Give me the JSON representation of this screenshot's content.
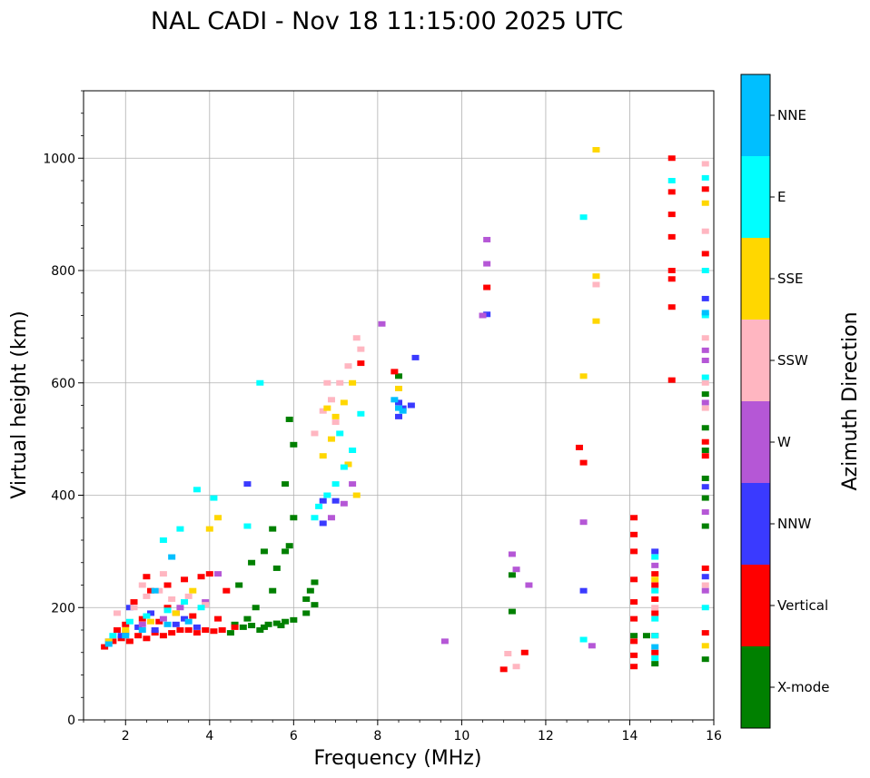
{
  "chart_data": {
    "type": "scatter",
    "title": "NAL CADI - Nov 18 11:15:00 2025 UTC",
    "xlabel": "Frequency (MHz)",
    "ylabel": "Virtual height (km)",
    "xlim": [
      1,
      16
    ],
    "ylim": [
      0,
      1120
    ],
    "xticks": [
      "2",
      "4",
      "6",
      "8",
      "10",
      "12",
      "14",
      "16"
    ],
    "yticks": [
      "0",
      "200",
      "400",
      "600",
      "800",
      "1000"
    ],
    "grid": true,
    "colorbar": {
      "label": "Azimuth Direction",
      "categories": [
        {
          "name": "X-mode",
          "color": "#008000"
        },
        {
          "name": "Vertical",
          "color": "#ff0000"
        },
        {
          "name": "NNW",
          "color": "#3a3aff"
        },
        {
          "name": "W",
          "color": "#b557d6"
        },
        {
          "name": "SSW",
          "color": "#ffb6c1"
        },
        {
          "name": "SSE",
          "color": "#ffd700"
        },
        {
          "name": "E",
          "color": "#00ffff"
        },
        {
          "name": "NNE",
          "color": "#00bfff"
        }
      ]
    },
    "series": [
      {
        "name": "X-mode",
        "points": [
          [
            4.6,
            170
          ],
          [
            4.8,
            165
          ],
          [
            5.0,
            168
          ],
          [
            5.2,
            160
          ],
          [
            5.4,
            170
          ],
          [
            5.6,
            172
          ],
          [
            5.8,
            175
          ],
          [
            6.0,
            178
          ],
          [
            4.5,
            155
          ],
          [
            4.9,
            180
          ],
          [
            5.3,
            165
          ],
          [
            5.7,
            168
          ],
          [
            5.1,
            200
          ],
          [
            5.5,
            230
          ],
          [
            5.6,
            270
          ],
          [
            5.8,
            300
          ],
          [
            5.9,
            310
          ],
          [
            6.0,
            360
          ],
          [
            6.0,
            490
          ],
          [
            5.9,
            535
          ],
          [
            6.3,
            190
          ],
          [
            6.3,
            215
          ],
          [
            6.4,
            230
          ],
          [
            6.5,
            245
          ],
          [
            6.5,
            205
          ],
          [
            4.7,
            240
          ],
          [
            5.0,
            280
          ],
          [
            5.3,
            300
          ],
          [
            5.5,
            340
          ],
          [
            5.8,
            420
          ],
          [
            14.1,
            150
          ],
          [
            14.6,
            100
          ],
          [
            14.4,
            150
          ],
          [
            15.8,
            108
          ],
          [
            15.8,
            345
          ],
          [
            15.8,
            395
          ],
          [
            15.8,
            430
          ],
          [
            15.8,
            480
          ],
          [
            15.8,
            520
          ],
          [
            15.8,
            580
          ],
          [
            11.2,
            193
          ],
          [
            11.2,
            258
          ],
          [
            8.5,
            612
          ]
        ]
      },
      {
        "name": "Vertical",
        "points": [
          [
            1.5,
            130
          ],
          [
            1.7,
            140
          ],
          [
            1.9,
            145
          ],
          [
            2.1,
            140
          ],
          [
            2.3,
            150
          ],
          [
            2.5,
            145
          ],
          [
            2.7,
            155
          ],
          [
            2.9,
            150
          ],
          [
            3.1,
            155
          ],
          [
            3.3,
            160
          ],
          [
            3.5,
            160
          ],
          [
            3.7,
            155
          ],
          [
            3.9,
            160
          ],
          [
            4.1,
            158
          ],
          [
            4.3,
            160
          ],
          [
            2.0,
            170
          ],
          [
            2.4,
            180
          ],
          [
            2.8,
            175
          ],
          [
            3.2,
            190
          ],
          [
            3.6,
            185
          ],
          [
            2.2,
            210
          ],
          [
            2.6,
            230
          ],
          [
            3.0,
            240
          ],
          [
            3.4,
            250
          ],
          [
            3.8,
            255
          ],
          [
            4.0,
            260
          ],
          [
            2.5,
            255
          ],
          [
            3.0,
            200
          ],
          [
            1.8,
            160
          ],
          [
            4.2,
            180
          ],
          [
            4.6,
            165
          ],
          [
            4.4,
            230
          ],
          [
            7.6,
            635
          ],
          [
            8.4,
            620
          ],
          [
            10.6,
            770
          ],
          [
            12.9,
            458
          ],
          [
            12.8,
            485
          ],
          [
            11.0,
            90
          ],
          [
            11.5,
            120
          ],
          [
            14.1,
            360
          ],
          [
            14.1,
            330
          ],
          [
            14.1,
            300
          ],
          [
            14.1,
            250
          ],
          [
            14.1,
            210
          ],
          [
            14.1,
            180
          ],
          [
            14.1,
            140
          ],
          [
            14.1,
            115
          ],
          [
            14.1,
            95
          ],
          [
            14.6,
            260
          ],
          [
            14.6,
            240
          ],
          [
            14.6,
            215
          ],
          [
            14.6,
            190
          ],
          [
            14.6,
            150
          ],
          [
            14.6,
            120
          ],
          [
            15.0,
            1000
          ],
          [
            15.0,
            940
          ],
          [
            15.0,
            900
          ],
          [
            15.0,
            860
          ],
          [
            15.0,
            800
          ],
          [
            15.0,
            785
          ],
          [
            15.0,
            735
          ],
          [
            15.0,
            605
          ],
          [
            15.8,
            155
          ],
          [
            15.8,
            270
          ],
          [
            15.8,
            495
          ],
          [
            15.8,
            470
          ],
          [
            15.8,
            830
          ],
          [
            15.8,
            945
          ]
        ]
      },
      {
        "name": "NNW",
        "points": [
          [
            1.6,
            140
          ],
          [
            1.9,
            150
          ],
          [
            2.3,
            165
          ],
          [
            2.7,
            160
          ],
          [
            3.2,
            170
          ],
          [
            3.7,
            165
          ],
          [
            2.1,
            200
          ],
          [
            2.6,
            190
          ],
          [
            3.4,
            180
          ],
          [
            6.7,
            350
          ],
          [
            7.0,
            390
          ],
          [
            8.5,
            565
          ],
          [
            8.6,
            555
          ],
          [
            8.5,
            540
          ],
          [
            8.8,
            560
          ],
          [
            8.9,
            645
          ],
          [
            10.6,
            722
          ],
          [
            12.9,
            230
          ],
          [
            14.6,
            300
          ],
          [
            15.8,
            750
          ],
          [
            15.8,
            415
          ],
          [
            15.8,
            255
          ],
          [
            4.9,
            420
          ],
          [
            6.7,
            390
          ]
        ]
      },
      {
        "name": "W",
        "points": [
          [
            2.0,
            155
          ],
          [
            2.4,
            170
          ],
          [
            2.9,
            180
          ],
          [
            3.3,
            200
          ],
          [
            3.9,
            210
          ],
          [
            4.2,
            260
          ],
          [
            6.9,
            360
          ],
          [
            7.2,
            385
          ],
          [
            7.4,
            420
          ],
          [
            8.1,
            705
          ],
          [
            10.6,
            855
          ],
          [
            10.6,
            812
          ],
          [
            11.2,
            295
          ],
          [
            11.3,
            268
          ],
          [
            11.6,
            240
          ],
          [
            12.9,
            352
          ],
          [
            13.1,
            132
          ],
          [
            14.6,
            275
          ],
          [
            15.8,
            230
          ],
          [
            15.8,
            658
          ],
          [
            15.8,
            640
          ],
          [
            15.8,
            565
          ],
          [
            15.8,
            370
          ],
          [
            10.5,
            720
          ],
          [
            9.6,
            140
          ]
        ]
      },
      {
        "name": "SSW",
        "points": [
          [
            1.8,
            190
          ],
          [
            2.2,
            200
          ],
          [
            2.5,
            220
          ],
          [
            2.8,
            230
          ],
          [
            3.1,
            215
          ],
          [
            3.5,
            220
          ],
          [
            3.9,
            205
          ],
          [
            2.4,
            240
          ],
          [
            2.9,
            260
          ],
          [
            6.5,
            510
          ],
          [
            6.7,
            550
          ],
          [
            6.9,
            570
          ],
          [
            7.1,
            600
          ],
          [
            7.3,
            630
          ],
          [
            7.5,
            680
          ],
          [
            7.6,
            660
          ],
          [
            6.8,
            600
          ],
          [
            7.0,
            530
          ],
          [
            13.2,
            775
          ],
          [
            11.3,
            95
          ],
          [
            11.1,
            118
          ],
          [
            15.8,
            990
          ],
          [
            15.8,
            870
          ],
          [
            15.8,
            680
          ],
          [
            15.8,
            600
          ],
          [
            15.8,
            555
          ],
          [
            15.8,
            240
          ],
          [
            14.6,
            200
          ]
        ]
      },
      {
        "name": "SSE",
        "points": [
          [
            1.6,
            140
          ],
          [
            2.0,
            160
          ],
          [
            2.6,
            175
          ],
          [
            3.2,
            190
          ],
          [
            3.6,
            230
          ],
          [
            4.0,
            340
          ],
          [
            4.2,
            360
          ],
          [
            6.7,
            470
          ],
          [
            6.9,
            500
          ],
          [
            7.0,
            540
          ],
          [
            7.2,
            565
          ],
          [
            7.4,
            600
          ],
          [
            7.5,
            400
          ],
          [
            6.8,
            555
          ],
          [
            7.3,
            455
          ],
          [
            8.5,
            590
          ],
          [
            12.9,
            612
          ],
          [
            13.2,
            710
          ],
          [
            13.2,
            790
          ],
          [
            13.2,
            1015
          ],
          [
            15.8,
            920
          ],
          [
            15.8,
            132
          ],
          [
            14.6,
            250
          ]
        ]
      },
      {
        "name": "E",
        "points": [
          [
            1.7,
            150
          ],
          [
            2.1,
            175
          ],
          [
            2.5,
            185
          ],
          [
            3.0,
            195
          ],
          [
            3.4,
            210
          ],
          [
            3.8,
            200
          ],
          [
            2.9,
            320
          ],
          [
            3.3,
            340
          ],
          [
            3.7,
            410
          ],
          [
            4.1,
            395
          ],
          [
            4.9,
            345
          ],
          [
            5.2,
            600
          ],
          [
            6.5,
            360
          ],
          [
            6.6,
            380
          ],
          [
            6.8,
            400
          ],
          [
            7.0,
            420
          ],
          [
            7.2,
            450
          ],
          [
            7.4,
            480
          ],
          [
            7.6,
            545
          ],
          [
            7.1,
            510
          ],
          [
            12.9,
            895
          ],
          [
            12.9,
            143
          ],
          [
            14.6,
            110
          ],
          [
            14.6,
            150
          ],
          [
            14.6,
            180
          ],
          [
            14.6,
            230
          ],
          [
            14.6,
            290
          ],
          [
            15.0,
            960
          ],
          [
            15.8,
            965
          ],
          [
            15.8,
            610
          ],
          [
            15.8,
            720
          ],
          [
            15.8,
            200
          ],
          [
            15.8,
            800
          ]
        ]
      },
      {
        "name": "NNE",
        "points": [
          [
            1.6,
            135
          ],
          [
            2.0,
            150
          ],
          [
            2.4,
            160
          ],
          [
            3.0,
            170
          ],
          [
            3.5,
            175
          ],
          [
            2.7,
            230
          ],
          [
            3.1,
            290
          ],
          [
            8.4,
            570
          ],
          [
            8.6,
            550
          ],
          [
            8.5,
            555
          ],
          [
            15.8,
            725
          ],
          [
            14.6,
            130
          ]
        ]
      }
    ]
  }
}
